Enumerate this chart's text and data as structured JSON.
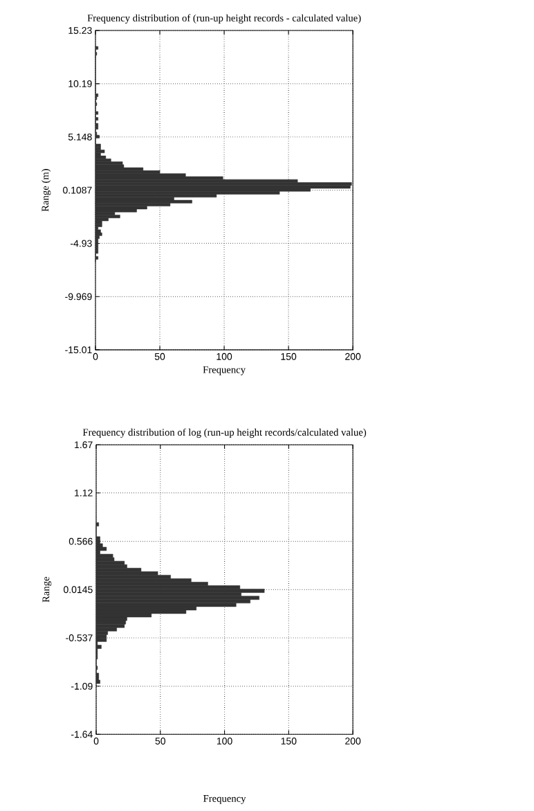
{
  "chart_data": [
    {
      "type": "histogram",
      "title": "Frequency distribution of (run-up height records - calculated value)",
      "xlabel": "Frequency",
      "ylabel": "Range (m)",
      "orientation": "horizontal",
      "color": "#333333",
      "grid": true,
      "bins": [
        -6.72,
        -6.44,
        -6.16,
        -5.88,
        -5.6,
        -5.32,
        -5.04,
        -4.76,
        -4.48,
        -4.2,
        -3.92,
        -3.64,
        -3.36,
        -3.08,
        -2.8,
        -2.52,
        -2.24,
        -1.96,
        -1.68,
        -1.4,
        -1.12,
        -0.84,
        -0.56,
        -0.28,
        0,
        0.28,
        0.56,
        0.84,
        1.12,
        1.4,
        1.68,
        1.96,
        2.24,
        2.52,
        2.8,
        3.08,
        3.36,
        3.64,
        3.92,
        4.2,
        4.48,
        4.76,
        5.04,
        5.32,
        5.6,
        5.88,
        6.16,
        6.44,
        6.72,
        7,
        7.28,
        7.56,
        7.84,
        8.12,
        8.4,
        8.68,
        8.96,
        9.24,
        9.52,
        9.8,
        10.08,
        10.36,
        10.64,
        10.92,
        11.2,
        11.48,
        11.76,
        12.04,
        12.32,
        12.6,
        12.88,
        13.16,
        13.44,
        13.72
      ],
      "values": [
        0,
        2,
        0,
        2,
        2,
        2,
        2,
        2,
        3,
        5,
        4,
        2,
        5,
        5,
        10,
        19,
        15,
        32,
        40,
        58,
        75,
        61,
        94,
        143,
        167,
        198,
        199,
        157,
        99,
        70,
        50,
        37,
        22,
        21,
        12,
        8,
        4,
        7,
        4,
        4,
        0,
        0,
        3,
        1,
        0,
        2,
        2,
        0,
        2,
        0,
        2,
        0,
        0,
        1,
        0,
        1,
        2,
        0,
        0,
        0,
        0,
        0,
        0,
        0,
        0,
        0,
        0,
        0,
        0,
        0,
        1,
        0,
        2
      ],
      "xlim": [
        0,
        200
      ],
      "ylim": [
        -15.01,
        15.23
      ],
      "xticks": [
        0,
        50,
        100,
        150,
        200
      ],
      "yticks": [
        -15.01,
        -9.969,
        -4.93,
        0.1087,
        5.148,
        10.19,
        15.23
      ]
    },
    {
      "type": "histogram",
      "title": "Frequency distribution of log (run-up height records/calculated value)",
      "xlabel": "Frequency",
      "ylabel": "Range",
      "orientation": "horizontal",
      "color": "#333333",
      "grid": true,
      "bins": [
        -1.06,
        -1.02,
        -0.98,
        -0.94,
        -0.9,
        -0.86,
        -0.82,
        -0.78,
        -0.74,
        -0.7,
        -0.66,
        -0.62,
        -0.58,
        -0.54,
        -0.5,
        -0.46,
        -0.42,
        -0.38,
        -0.34,
        -0.3,
        -0.26,
        -0.22,
        -0.18,
        -0.14,
        -0.1,
        -0.06,
        -0.02,
        0.02,
        0.06,
        0.1,
        0.14,
        0.18,
        0.22,
        0.26,
        0.3,
        0.34,
        0.38,
        0.42,
        0.46,
        0.5,
        0.54,
        0.58,
        0.62,
        0.66,
        0.7,
        0.74,
        0.78
      ],
      "values": [
        3,
        2,
        2,
        0,
        1,
        0,
        0,
        1,
        1,
        1,
        4,
        1,
        8,
        8,
        9,
        16,
        22,
        23,
        24,
        43,
        70,
        78,
        109,
        120,
        127,
        113,
        131,
        112,
        87,
        74,
        58,
        48,
        35,
        24,
        22,
        14,
        13,
        3,
        8,
        5,
        3,
        3,
        0,
        0,
        0,
        2
      ],
      "xlim": [
        0,
        200
      ],
      "ylim": [
        -1.64,
        1.67
      ],
      "xticks": [
        0,
        50,
        100,
        150,
        200
      ],
      "yticks": [
        -1.64,
        -1.09,
        -0.537,
        0.0145,
        0.566,
        1.12,
        1.67
      ]
    }
  ]
}
